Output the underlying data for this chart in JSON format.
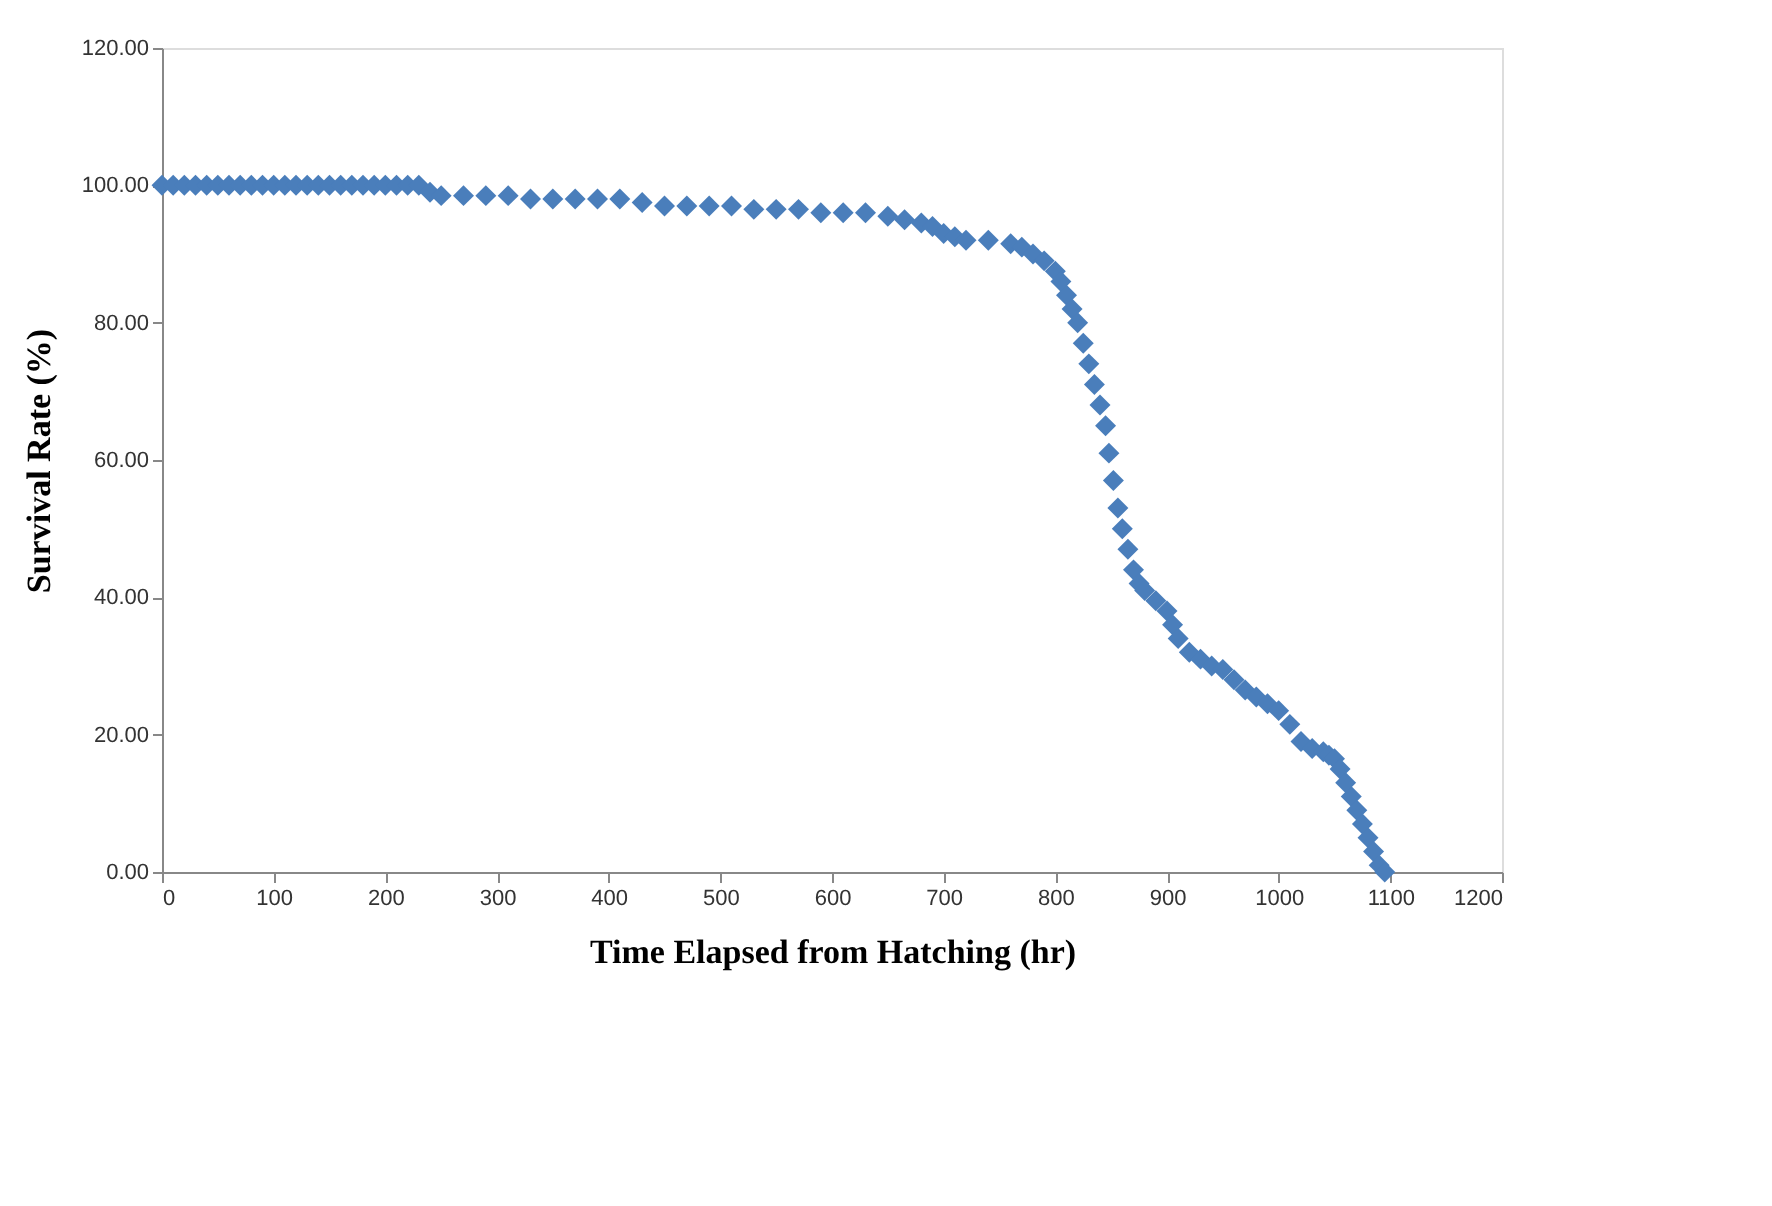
{
  "chart_data": {
    "type": "scatter",
    "xlabel": "Time Elapsed from Hatching (hr)",
    "ylabel": "Survival Rate (%)",
    "x": [
      0,
      10,
      20,
      30,
      40,
      50,
      60,
      70,
      80,
      90,
      100,
      110,
      120,
      130,
      140,
      150,
      160,
      170,
      180,
      190,
      200,
      210,
      220,
      230,
      240,
      250,
      270,
      290,
      310,
      330,
      350,
      370,
      390,
      410,
      430,
      450,
      470,
      490,
      510,
      530,
      550,
      570,
      590,
      610,
      630,
      650,
      665,
      680,
      690,
      700,
      710,
      720,
      740,
      760,
      770,
      780,
      790,
      800,
      805,
      810,
      815,
      820,
      825,
      830,
      835,
      840,
      845,
      848,
      852,
      856,
      860,
      865,
      870,
      875,
      880,
      890,
      900,
      905,
      910,
      920,
      930,
      940,
      950,
      960,
      970,
      980,
      990,
      1000,
      1010,
      1020,
      1030,
      1040,
      1045,
      1050,
      1055,
      1060,
      1065,
      1070,
      1075,
      1080,
      1085,
      1090,
      1095
    ],
    "values": [
      100,
      100,
      100,
      100,
      100,
      100,
      100,
      100,
      100,
      100,
      100,
      100,
      100,
      100,
      100,
      100,
      100,
      100,
      100,
      100,
      100,
      100,
      100,
      100,
      99,
      98.5,
      98.5,
      98.5,
      98.5,
      98,
      98,
      98,
      98,
      98,
      97.5,
      97,
      97,
      97,
      97,
      96.5,
      96.5,
      96.5,
      96,
      96,
      96,
      95.5,
      95,
      94.5,
      94,
      93,
      92.5,
      92,
      92,
      91.5,
      91,
      90,
      89,
      87.5,
      86,
      84,
      82,
      80,
      77,
      74,
      71,
      68,
      65,
      61,
      57,
      53,
      50,
      47,
      44,
      42,
      41,
      39.5,
      38,
      36,
      34,
      32,
      31,
      30,
      29.5,
      28,
      26.5,
      25.5,
      24.5,
      23.5,
      21.5,
      19,
      18,
      17.5,
      17,
      16.5,
      15,
      13,
      11,
      9,
      7,
      5,
      3,
      1,
      0
    ],
    "color": "#4a7ebb",
    "marker": "diamond",
    "grid": false,
    "xlim": [
      0,
      1200
    ],
    "xticks": [
      0,
      100,
      200,
      300,
      400,
      500,
      600,
      700,
      800,
      900,
      1000,
      1100,
      1200
    ],
    "ylim": [
      0,
      120
    ],
    "yticks": [
      {
        "value": 0,
        "label": "0.00"
      },
      {
        "value": 20,
        "label": "20.00"
      },
      {
        "value": 40,
        "label": "40.00"
      },
      {
        "value": 60,
        "label": "60.00"
      },
      {
        "value": 80,
        "label": "80.00"
      },
      {
        "value": 100,
        "label": "100.00"
      },
      {
        "value": 120,
        "label": "120.00"
      }
    ]
  }
}
